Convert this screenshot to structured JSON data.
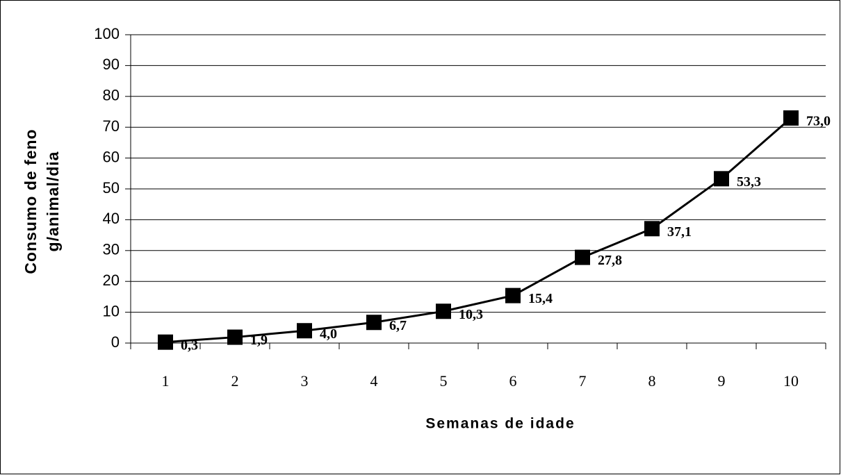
{
  "chart_data": {
    "type": "line",
    "xlabel": "Semanas de idade",
    "ylabel": [
      "Consumo de feno",
      "g/animal/dia"
    ],
    "categories": [
      "1",
      "2",
      "3",
      "4",
      "5",
      "6",
      "7",
      "8",
      "9",
      "10"
    ],
    "values": [
      0.3,
      1.9,
      4.0,
      6.7,
      10.3,
      15.4,
      27.8,
      37.1,
      53.3,
      73.0
    ],
    "value_labels": [
      "0,3",
      "1,9",
      "4,0",
      "6,7",
      "10,3",
      "15,4",
      "27,8",
      "37,1",
      "53,3",
      "73,0"
    ],
    "color": "#000000",
    "ylim": [
      0,
      100
    ],
    "yticks": [
      0,
      10,
      20,
      30,
      40,
      50,
      60,
      70,
      80,
      90,
      100
    ],
    "grid": true
  }
}
